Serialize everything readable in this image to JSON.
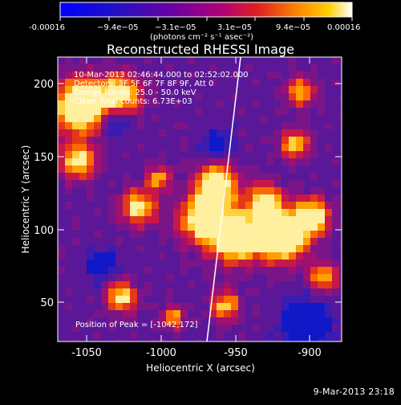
{
  "colorbar": {
    "min_label": "-0.00016",
    "t1": "−9.4e−05",
    "t2": "−3.1e−05",
    "t3": "3.1e−05",
    "t4": "9.4e−05",
    "max_label": "0.00016",
    "unit_label": "(photons cm⁻² s⁻¹ asec⁻²)"
  },
  "title": "Reconstructed RHESSI Image",
  "info": {
    "line1": "10-Mar-2013 02:46:44.000 to 02:52:02.000",
    "line2": "Detectors: 3F 5F 6F 7F 8F 9F, Att 0",
    "line3": "Energy Range: 25.0 - 50.0 keV",
    "line4": "Clean     Total counts: 6.73E+03",
    "peak": "Position of Peak = [-1042,172]"
  },
  "axes": {
    "x_label": "Heliocentric X (arcsec)",
    "y_label": "Heliocentric Y (arcsec)",
    "x_ticks": [
      "-1050",
      "-1000",
      "-950",
      "-900"
    ],
    "y_ticks": [
      "50",
      "100",
      "150",
      "200"
    ],
    "x_range": [
      -1068,
      -877
    ],
    "y_range": [
      23,
      218
    ]
  },
  "footer": {
    "stamp": "9-Mar-2013 23:18"
  },
  "colors": {
    "background": "#000000",
    "limb_line": "#ffffff"
  }
}
